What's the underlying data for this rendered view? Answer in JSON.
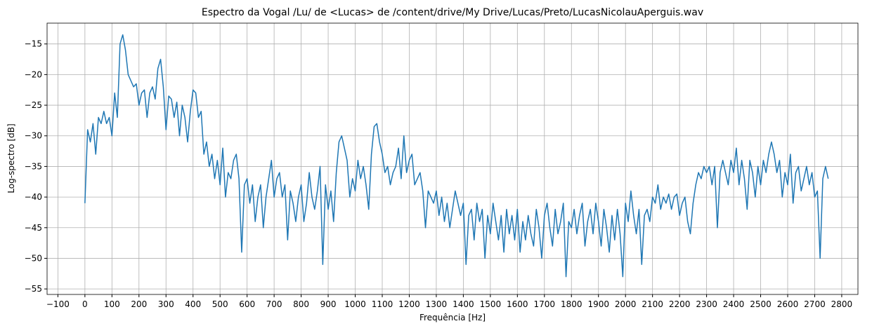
{
  "chart_data": {
    "type": "line",
    "title": "Espectro da Vogal /Lu/ de <Lucas> de /content/drive/My Drive/Lucas/Preto/LucasNicolauAperguis.wav",
    "x_label": "Frequência [Hz]",
    "y_label": "Log-spectro [dB]",
    "grid": true,
    "xlim": [
      -140,
      2860
    ],
    "ylim": [
      -55.9,
      -11.6
    ],
    "xticks": [
      {
        "value": -100,
        "label": "−100"
      },
      0,
      100,
      200,
      300,
      400,
      500,
      600,
      700,
      800,
      900,
      1000,
      1100,
      1200,
      1300,
      1400,
      1500,
      1600,
      1700,
      1800,
      1900,
      2000,
      2100,
      2200,
      2300,
      2400,
      2500,
      2600,
      2700,
      2800
    ],
    "yticks": [
      {
        "value": -55,
        "label": "−55"
      },
      {
        "value": -50,
        "label": "−50"
      },
      {
        "value": -45,
        "label": "−45"
      },
      {
        "value": -40,
        "label": "−40"
      },
      {
        "value": -35,
        "label": "−35"
      },
      {
        "value": -30,
        "label": "−30"
      },
      {
        "value": -25,
        "label": "−25"
      },
      {
        "value": -20,
        "label": "−20"
      },
      {
        "value": -15,
        "label": "−15"
      }
    ],
    "x": [
      0,
      10,
      20,
      30,
      40,
      50,
      60,
      70,
      80,
      90,
      100,
      110,
      120,
      130,
      140,
      150,
      160,
      170,
      180,
      190,
      200,
      210,
      220,
      230,
      240,
      250,
      260,
      270,
      280,
      290,
      300,
      310,
      320,
      330,
      340,
      350,
      360,
      370,
      380,
      390,
      400,
      410,
      420,
      430,
      440,
      450,
      460,
      470,
      480,
      490,
      500,
      510,
      520,
      530,
      540,
      550,
      560,
      570,
      580,
      590,
      600,
      610,
      620,
      630,
      640,
      650,
      660,
      670,
      680,
      690,
      700,
      710,
      720,
      730,
      740,
      750,
      760,
      770,
      780,
      790,
      800,
      810,
      820,
      830,
      840,
      850,
      860,
      870,
      880,
      890,
      900,
      910,
      920,
      930,
      940,
      950,
      960,
      970,
      980,
      990,
      1000,
      1010,
      1020,
      1030,
      1040,
      1050,
      1060,
      1070,
      1080,
      1090,
      1100,
      1110,
      1120,
      1130,
      1140,
      1150,
      1160,
      1170,
      1180,
      1190,
      1200,
      1210,
      1220,
      1230,
      1240,
      1250,
      1260,
      1270,
      1280,
      1290,
      1300,
      1310,
      1320,
      1330,
      1340,
      1350,
      1360,
      1370,
      1380,
      1390,
      1400,
      1410,
      1420,
      1430,
      1440,
      1450,
      1460,
      1470,
      1480,
      1490,
      1500,
      1510,
      1520,
      1530,
      1540,
      1550,
      1560,
      1570,
      1580,
      1590,
      1600,
      1610,
      1620,
      1630,
      1640,
      1650,
      1660,
      1670,
      1680,
      1690,
      1700,
      1710,
      1720,
      1730,
      1740,
      1750,
      1760,
      1770,
      1780,
      1790,
      1800,
      1810,
      1820,
      1830,
      1840,
      1850,
      1860,
      1870,
      1880,
      1890,
      1900,
      1910,
      1920,
      1930,
      1940,
      1950,
      1960,
      1970,
      1980,
      1990,
      2000,
      2010,
      2020,
      2030,
      2040,
      2050,
      2060,
      2070,
      2080,
      2090,
      2100,
      2110,
      2120,
      2130,
      2140,
      2150,
      2160,
      2170,
      2180,
      2190,
      2200,
      2210,
      2220,
      2230,
      2240,
      2250,
      2260,
      2270,
      2280,
      2290,
      2300,
      2310,
      2320,
      2330,
      2340,
      2350,
      2360,
      2370,
      2380,
      2390,
      2400,
      2410,
      2420,
      2430,
      2440,
      2450,
      2460,
      2470,
      2480,
      2490,
      2500,
      2510,
      2520,
      2530,
      2540,
      2550,
      2560,
      2570,
      2580,
      2590,
      2600,
      2610,
      2620,
      2630,
      2640,
      2650,
      2660,
      2670,
      2680,
      2690,
      2700,
      2710,
      2720,
      2730,
      2740,
      2750
    ],
    "series": [
      {
        "color": "#1f77b4",
        "values": [
          -41,
          -29,
          -31,
          -28,
          -33,
          -27,
          -28,
          -26,
          -28,
          -27,
          -30,
          -23,
          -27,
          -15,
          -13.5,
          -16,
          -20,
          -21,
          -22,
          -21.5,
          -25,
          -23,
          -22.5,
          -27,
          -23,
          -22,
          -24,
          -19,
          -17.5,
          -22,
          -29,
          -23.5,
          -24,
          -27,
          -24.5,
          -30,
          -25,
          -27,
          -31,
          -26,
          -22.5,
          -23,
          -27,
          -26,
          -33,
          -31,
          -35,
          -33,
          -37,
          -34,
          -38,
          -32,
          -40,
          -36,
          -37,
          -34,
          -33,
          -37,
          -49,
          -38,
          -37,
          -41,
          -38,
          -44,
          -40,
          -38,
          -45,
          -40,
          -37,
          -34,
          -40,
          -37,
          -36,
          -40,
          -38,
          -47,
          -39,
          -41,
          -44,
          -40,
          -38,
          -44,
          -41,
          -36,
          -40,
          -42,
          -39,
          -35,
          -51,
          -38,
          -42,
          -39,
          -44,
          -36,
          -31,
          -30,
          -32,
          -34,
          -40,
          -37,
          -39,
          -34,
          -37,
          -35,
          -38,
          -42,
          -33,
          -28.5,
          -28,
          -31,
          -33,
          -36,
          -35,
          -38,
          -36,
          -35,
          -32,
          -37,
          -30,
          -36,
          -34,
          -33,
          -38,
          -37,
          -36,
          -39,
          -45,
          -39,
          -40,
          -41,
          -39,
          -43,
          -40,
          -44,
          -41,
          -45,
          -42,
          -39,
          -41,
          -43,
          -41,
          -51,
          -43,
          -42,
          -47,
          -41,
          -44,
          -42,
          -50,
          -43,
          -46,
          -41,
          -44,
          -47,
          -43,
          -49,
          -42,
          -46,
          -43,
          -47,
          -42,
          -49,
          -44,
          -47,
          -43,
          -46,
          -48,
          -42,
          -45,
          -50,
          -43,
          -41,
          -45,
          -48,
          -42,
          -46,
          -44,
          -41,
          -53,
          -44,
          -45,
          -42,
          -46,
          -43,
          -41,
          -48,
          -44,
          -42,
          -46,
          -41,
          -44,
          -48,
          -42,
          -45,
          -49,
          -43,
          -47,
          -42,
          -46,
          -53,
          -41,
          -44,
          -39,
          -43,
          -46,
          -42,
          -51,
          -43,
          -42,
          -44,
          -40,
          -41,
          -38,
          -42,
          -40,
          -41,
          -39.5,
          -42,
          -40,
          -39.5,
          -43,
          -41,
          -40,
          -44,
          -46,
          -41,
          -38,
          -36,
          -37,
          -35,
          -36,
          -35,
          -38,
          -35,
          -45,
          -36,
          -34,
          -36,
          -38,
          -34,
          -36,
          -32,
          -38,
          -34,
          -37,
          -42,
          -34,
          -36,
          -40,
          -35,
          -38,
          -34,
          -36,
          -33,
          -31,
          -33,
          -36,
          -34,
          -40,
          -36,
          -38,
          -33,
          -41,
          -36,
          -35,
          -39,
          -37,
          -35,
          -38,
          -36,
          -40,
          -39,
          -50,
          -37,
          -35,
          -37
        ]
      }
    ]
  }
}
